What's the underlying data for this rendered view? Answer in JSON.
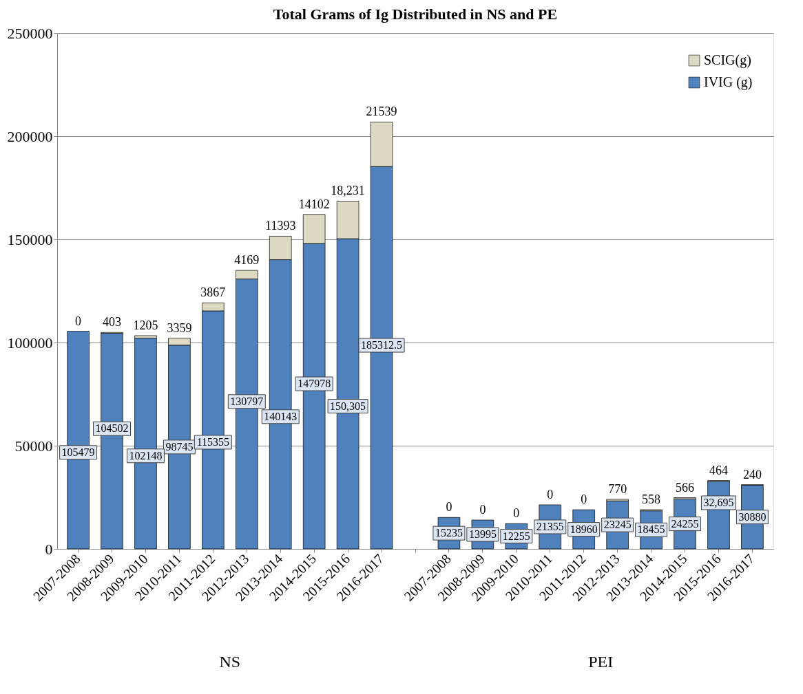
{
  "chart_data": {
    "type": "bar",
    "title": "Total Grams of Ig Distributed  in NS and PE",
    "stacked": true,
    "categories": [
      "2007-2008",
      "2008-2009",
      "2009-2010",
      "2010-2011",
      "2011-2012",
      "2012-2013",
      "2013-2014",
      "2014-2015",
      "2015-2016",
      "2016-2017",
      null,
      "2007-2008",
      "2008-2009",
      "2009-2010",
      "2010-2011",
      "2011-2012",
      "2012-2013",
      "2013-2014",
      "2014-2015",
      "2015-2016",
      "2016-2017"
    ],
    "series": [
      {
        "name": "IVIG (g)",
        "color": "#4f81bd",
        "values": [
          105479,
          104502,
          102148,
          98745,
          115355,
          130797,
          140143,
          147978,
          150305,
          185312.5,
          null,
          15235,
          13995,
          12255,
          21355,
          18960,
          23245,
          18455,
          24255,
          32695,
          30880
        ],
        "value_labels": [
          "105479",
          "104502",
          "102148",
          "98745",
          "115355",
          "130797",
          "140143",
          "147978",
          "150,305",
          "185312.5",
          null,
          "15235",
          "13995",
          "12255",
          "21355",
          "18960",
          "23245",
          "18455",
          "24255",
          "32,695",
          "30880"
        ]
      },
      {
        "name": "SCIG(g)",
        "color": "#ddd9c3",
        "values": [
          0,
          403,
          1205,
          3359,
          3867,
          4169,
          11393,
          14102,
          18231,
          21539,
          null,
          0,
          0,
          0,
          0,
          0,
          770,
          558,
          566,
          464,
          240
        ],
        "value_labels": [
          "0",
          "403",
          "1205",
          "3359",
          "3867",
          "4169",
          "11393",
          "14102",
          "18,231",
          "21539",
          null,
          "0",
          "0",
          "0",
          "0",
          "0",
          "770",
          "558",
          "566",
          "464",
          "240"
        ]
      }
    ],
    "ylim": [
      0,
      250000
    ],
    "yticks": [
      0,
      50000,
      100000,
      150000,
      200000,
      250000
    ],
    "grid": "y",
    "legend": "top right",
    "annotations": [
      "NS",
      "PEI"
    ]
  }
}
